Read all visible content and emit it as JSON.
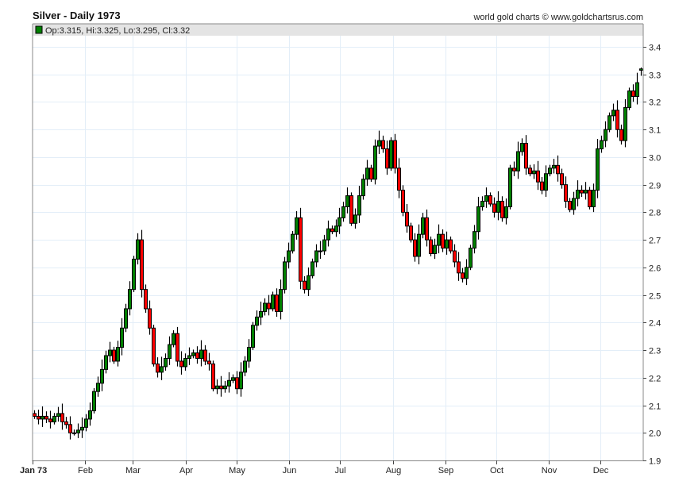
{
  "chart_data": {
    "type": "candlestick",
    "title": "Silver - Daily 1973",
    "credit": "world gold charts © www.goldchartsrus.com",
    "legend": "Op:3.315, Hi:3.325, Lo:3.295, Cl:3.32",
    "last_candle": {
      "open": 3.315,
      "high": 3.325,
      "low": 3.295,
      "close": 3.32
    },
    "ylim": [
      1.9,
      3.4
    ],
    "yticks": [
      "1.9",
      "2.0",
      "2.1",
      "2.2",
      "2.3",
      "2.4",
      "2.5",
      "2.6",
      "2.7",
      "2.8",
      "2.9",
      "3.0",
      "3.1",
      "3.2",
      "3.3",
      "3.4"
    ],
    "xlim_day_of_year": [
      0,
      359
    ],
    "xticks": [
      {
        "label": "Jan 73",
        "day": 0
      },
      {
        "label": "Feb",
        "day": 31
      },
      {
        "label": "Mar",
        "day": 59
      },
      {
        "label": "Apr",
        "day": 90
      },
      {
        "label": "May",
        "day": 120
      },
      {
        "label": "Jun",
        "day": 151
      },
      {
        "label": "Jul",
        "day": 181
      },
      {
        "label": "Aug",
        "day": 212
      },
      {
        "label": "Sep",
        "day": 243
      },
      {
        "label": "Oct",
        "day": 273
      },
      {
        "label": "Nov",
        "day": 304
      },
      {
        "label": "Dec",
        "day": 334
      }
    ],
    "grid": true,
    "colors": {
      "up": "#008000",
      "down": "#ff0000",
      "grid": "#e3eef8",
      "legend_bar": "#e4e4e4"
    },
    "close": [
      2.06,
      2.05,
      2.06,
      2.05,
      2.04,
      2.06,
      2.07,
      2.04,
      2.03,
      2.0,
      2.0,
      2.01,
      2.02,
      2.05,
      2.08,
      2.15,
      2.18,
      2.23,
      2.28,
      2.3,
      2.26,
      2.31,
      2.38,
      2.45,
      2.52,
      2.63,
      2.7,
      2.52,
      2.45,
      2.38,
      2.25,
      2.22,
      2.24,
      2.27,
      2.32,
      2.36,
      2.26,
      2.24,
      2.27,
      2.28,
      2.29,
      2.27,
      2.3,
      2.26,
      2.25,
      2.16,
      2.17,
      2.16,
      2.17,
      2.19,
      2.2,
      2.16,
      2.22,
      2.26,
      2.31,
      2.39,
      2.42,
      2.44,
      2.47,
      2.45,
      2.5,
      2.44,
      2.52,
      2.62,
      2.66,
      2.72,
      2.78,
      2.55,
      2.52,
      2.57,
      2.62,
      2.66,
      2.66,
      2.7,
      2.74,
      2.73,
      2.75,
      2.78,
      2.82,
      2.86,
      2.76,
      2.79,
      2.86,
      2.92,
      2.96,
      2.92,
      3.04,
      3.06,
      3.03,
      2.96,
      3.06,
      2.96,
      2.88,
      2.8,
      2.75,
      2.7,
      2.64,
      2.72,
      2.78,
      2.7,
      2.65,
      2.68,
      2.72,
      2.67,
      2.7,
      2.66,
      2.62,
      2.58,
      2.56,
      2.6,
      2.67,
      2.73,
      2.82,
      2.84,
      2.86,
      2.83,
      2.8,
      2.84,
      2.78,
      2.82,
      2.96,
      2.95,
      3.02,
      3.05,
      2.96,
      2.94,
      2.95,
      2.91,
      2.88,
      2.94,
      2.96,
      2.97,
      2.94,
      2.9,
      2.84,
      2.81,
      2.85,
      2.88,
      2.87,
      2.88,
      2.82,
      2.88,
      3.03,
      3.06,
      3.1,
      3.15,
      3.17,
      3.1,
      3.06,
      3.18,
      3.24,
      3.22,
      3.27,
      3.32
    ]
  }
}
